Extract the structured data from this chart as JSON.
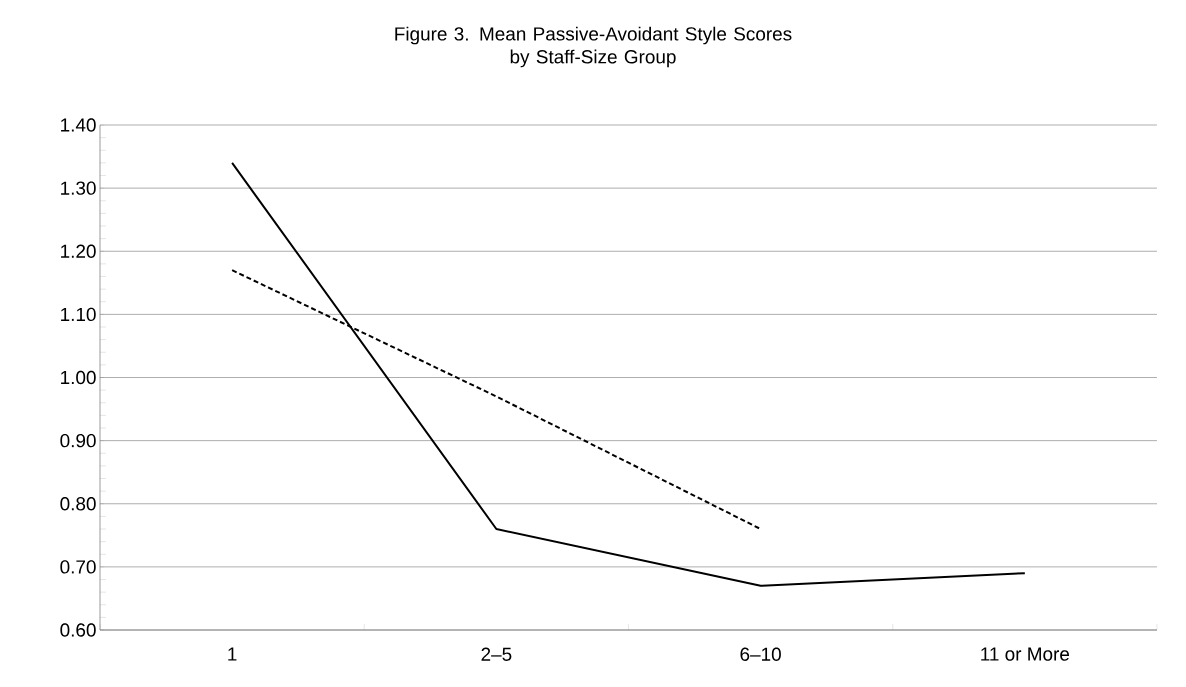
{
  "chart_data": {
    "type": "line",
    "title": "Figure 3. Mean Passive-Avoidant Style Scores\nby Staff-Size Group",
    "categories": [
      "1",
      "2–5",
      "6–10",
      "11 or More"
    ],
    "series": [
      {
        "color": "#000000",
        "values": [
          1.34,
          0.76,
          0.67,
          0.69
        ],
        "line_style": "solid"
      },
      {
        "type": "line",
        "color": "#000000",
        "values": [
          1.17,
          0.97,
          0.76,
          null
        ],
        "line_style": "dashed"
      }
    ],
    "ylim": [
      0.6,
      1.4
    ],
    "yticks": [
      {
        "value": 0.6,
        "label": "0.60"
      },
      {
        "value": 0.7,
        "label": "0.70"
      },
      {
        "value": 0.8,
        "label": "0.80"
      },
      {
        "value": 0.9,
        "label": "0.90"
      },
      {
        "value": 1.0,
        "label": "1.00"
      },
      {
        "value": 1.1,
        "label": "1.10"
      },
      {
        "value": 1.2,
        "label": "1.20"
      },
      {
        "value": 1.3,
        "label": "1.30"
      },
      {
        "value": 1.4,
        "label": "1.40"
      }
    ],
    "grid": "y",
    "marker": "none"
  }
}
